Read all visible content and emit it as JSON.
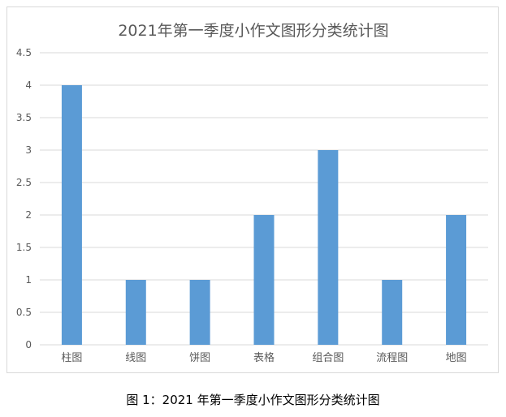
{
  "caption": "图 1：2021 年第一季度小作文图形分类统计图",
  "colors": {
    "bar": "#5b9bd5",
    "grid": "#d9d9d9",
    "axis_text": "#595959"
  },
  "chart_data": {
    "type": "bar",
    "title": "2021年第一季度小作文图形分类统计图",
    "categories": [
      "柱图",
      "线图",
      "饼图",
      "表格",
      "组合图",
      "流程图",
      "地图"
    ],
    "values": [
      4,
      1,
      1,
      2,
      3,
      1,
      2
    ],
    "xlabel": "",
    "ylabel": "",
    "ylim": [
      0,
      4.5
    ],
    "yticks": [
      "0",
      "0.5",
      "1",
      "1.5",
      "2",
      "2.5",
      "3",
      "3.5",
      "4",
      "4.5"
    ],
    "grid": true,
    "legend": "none"
  }
}
